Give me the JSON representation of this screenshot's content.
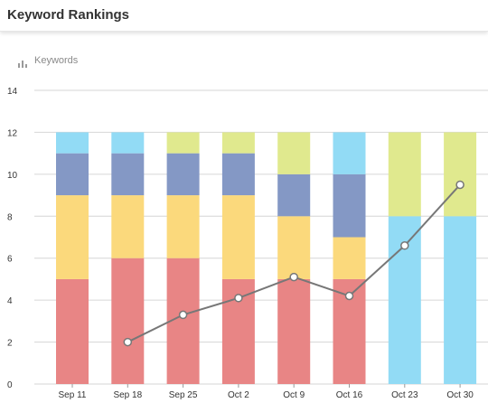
{
  "header": {
    "title": "Keyword Rankings"
  },
  "legend": {
    "icon": "bar-chart-icon",
    "label": "Keywords"
  },
  "colors": {
    "red": "#e88585",
    "yellow": "#fbd97c",
    "purple": "#8498c5",
    "blue": "#92dbf5",
    "green": "#e0e98e",
    "line": "#777777",
    "grid": "#d6d6d6"
  },
  "chart_data": {
    "type": "bar",
    "stacked": true,
    "categories": [
      "Sep 11",
      "Sep 18",
      "Sep 25",
      "Oct 2",
      "Oct 9",
      "Oct 16",
      "Oct 23",
      "Oct 30"
    ],
    "ylim": [
      0,
      14
    ],
    "yticks": [
      0,
      2,
      4,
      6,
      8,
      10,
      12,
      14
    ],
    "grid": true,
    "series": [
      {
        "color": "#e88585",
        "values": [
          5,
          6,
          6,
          5,
          5,
          5,
          0,
          0
        ]
      },
      {
        "color": "#fbd97c",
        "values": [
          4,
          3,
          3,
          4,
          3,
          2,
          0,
          0
        ]
      },
      {
        "color": "#8498c5",
        "values": [
          2,
          2,
          2,
          2,
          2,
          3,
          0,
          0
        ]
      },
      {
        "color": "#92dbf5",
        "values": [
          1,
          1,
          0,
          0,
          0,
          2,
          8,
          8
        ]
      },
      {
        "color": "#e0e98e",
        "values": [
          0,
          0,
          1,
          1,
          2,
          0,
          4,
          4
        ]
      }
    ],
    "line": {
      "color": "#777777",
      "values": [
        null,
        2.0,
        3.3,
        4.1,
        5.1,
        4.2,
        6.6,
        9.5
      ]
    }
  }
}
